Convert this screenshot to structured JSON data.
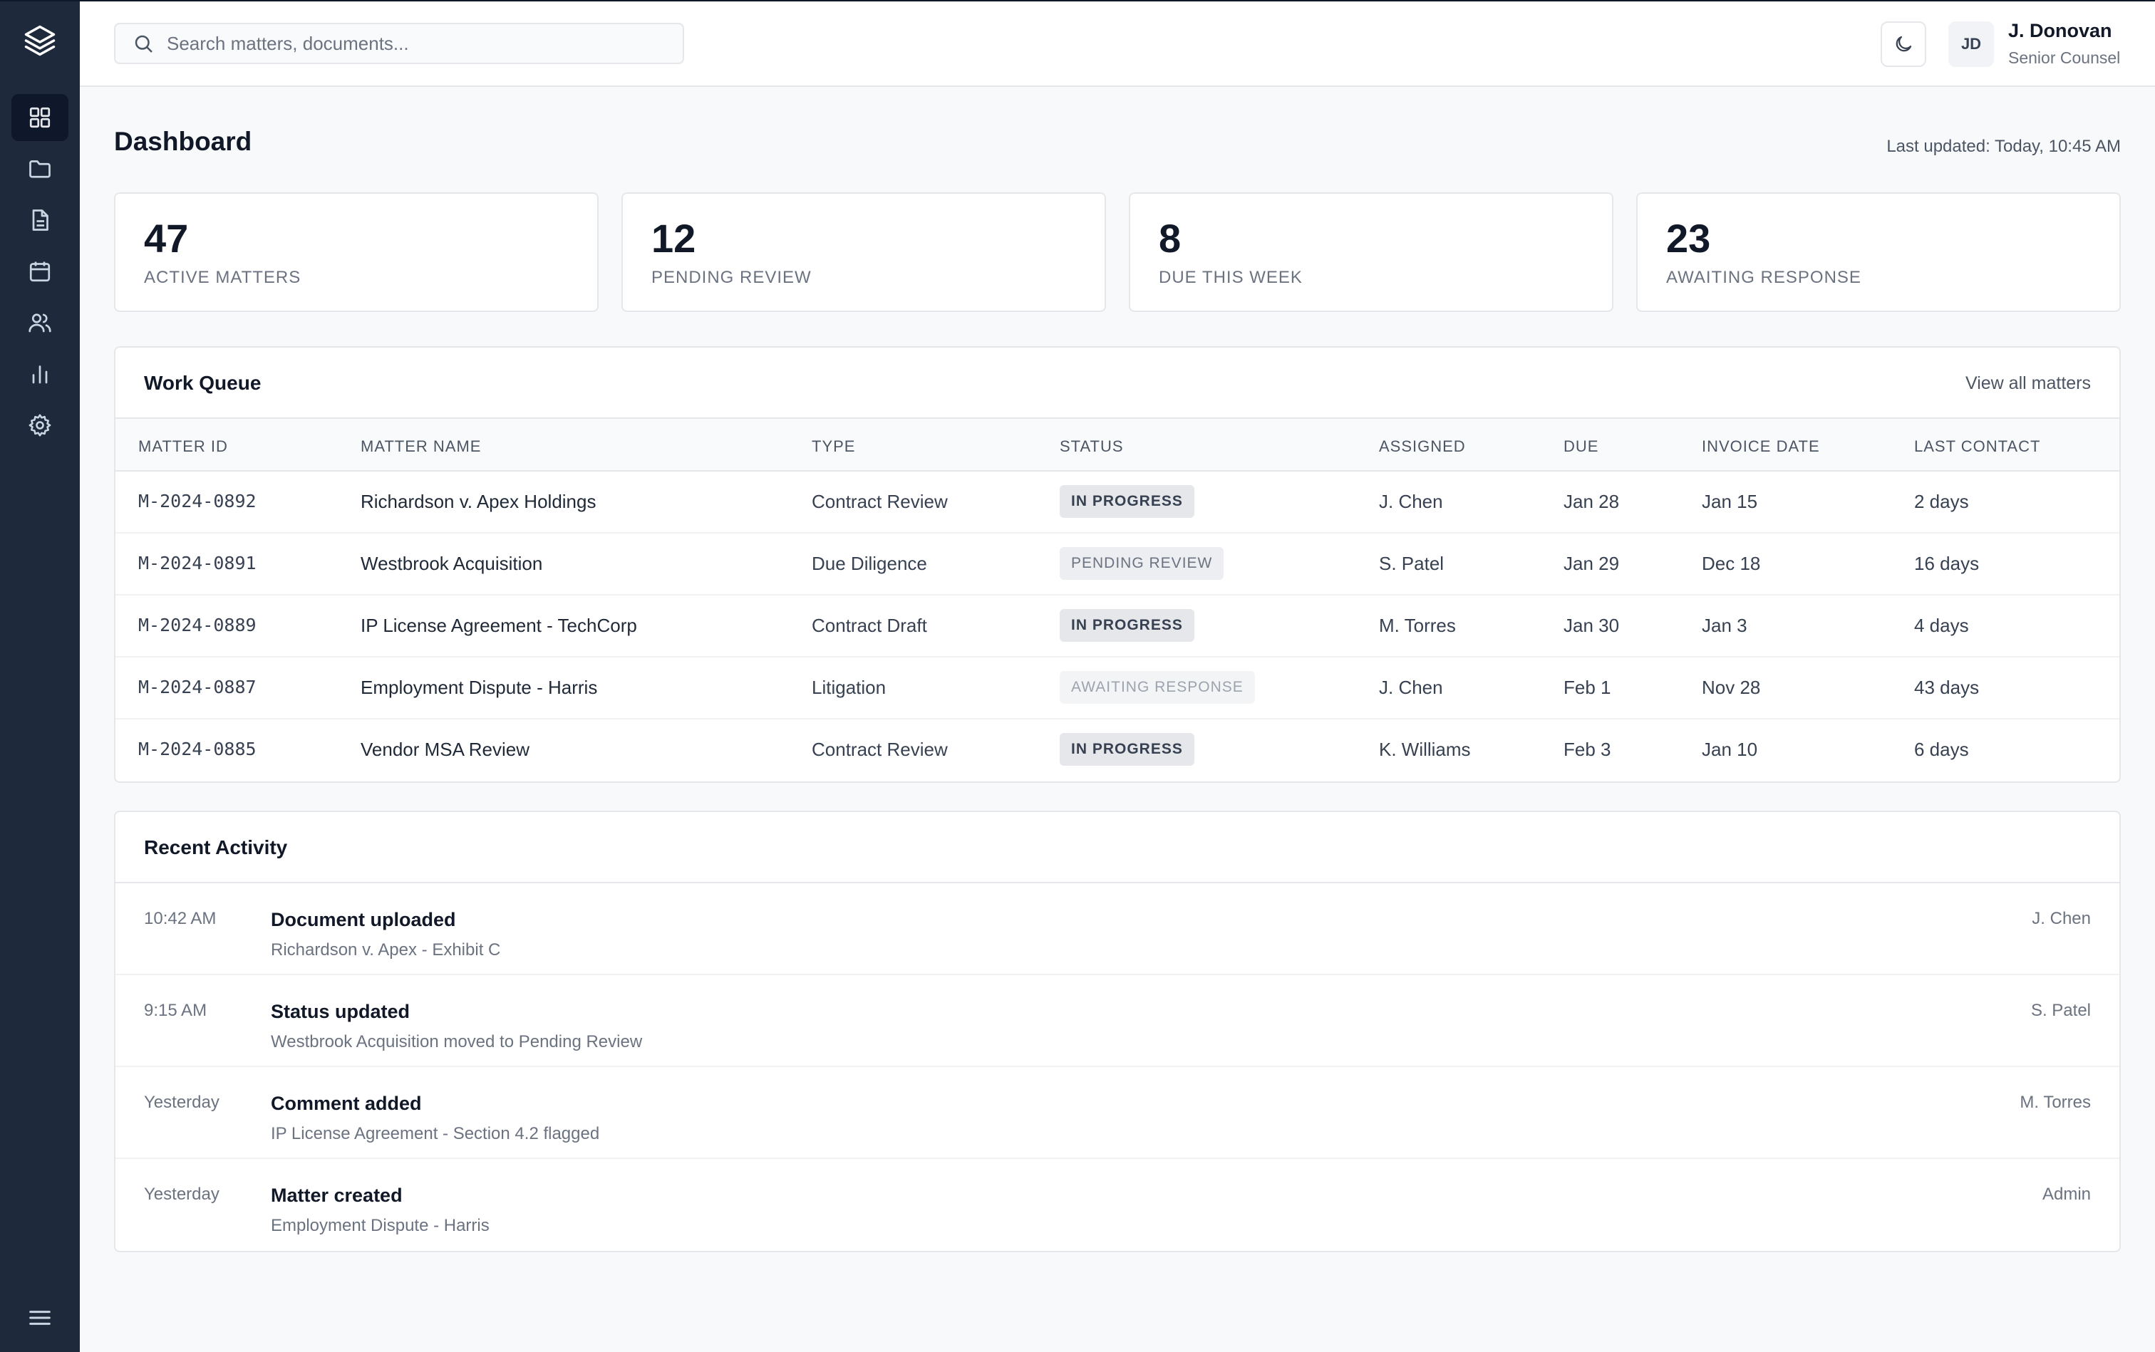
{
  "search": {
    "placeholder": "Search matters, documents..."
  },
  "user": {
    "initials": "JD",
    "name": "J. Donovan",
    "role": "Senior Counsel"
  },
  "page": {
    "title": "Dashboard",
    "last_updated": "Last updated: Today, 10:45 AM"
  },
  "sidebar": {
    "items": [
      {
        "icon": "dashboard-icon",
        "active": true
      },
      {
        "icon": "folder-icon",
        "active": false
      },
      {
        "icon": "document-icon",
        "active": false
      },
      {
        "icon": "calendar-icon",
        "active": false
      },
      {
        "icon": "users-icon",
        "active": false
      },
      {
        "icon": "bar-chart-icon",
        "active": false
      },
      {
        "icon": "gear-icon",
        "active": false
      }
    ]
  },
  "stats": [
    {
      "value": "47",
      "label": "ACTIVE MATTERS"
    },
    {
      "value": "12",
      "label": "PENDING REVIEW"
    },
    {
      "value": "8",
      "label": "DUE THIS WEEK"
    },
    {
      "value": "23",
      "label": "AWAITING RESPONSE"
    }
  ],
  "work_queue": {
    "title": "Work Queue",
    "link": "View all matters",
    "columns": [
      "MATTER ID",
      "MATTER NAME",
      "TYPE",
      "STATUS",
      "ASSIGNED",
      "DUE",
      "INVOICE DATE",
      "LAST CONTACT"
    ],
    "rows": [
      {
        "id": "M-2024-0892",
        "name": "Richardson v. Apex Holdings",
        "type": "Contract Review",
        "status": "IN PROGRESS",
        "assigned": "J. Chen",
        "due": "Jan 28",
        "invoice": "Jan 15",
        "contact": "2 days"
      },
      {
        "id": "M-2024-0891",
        "name": "Westbrook Acquisition",
        "type": "Due Diligence",
        "status": "PENDING REVIEW",
        "assigned": "S. Patel",
        "due": "Jan 29",
        "invoice": "Dec 18",
        "contact": "16 days"
      },
      {
        "id": "M-2024-0889",
        "name": "IP License Agreement - TechCorp",
        "type": "Contract Draft",
        "status": "IN PROGRESS",
        "assigned": "M. Torres",
        "due": "Jan 30",
        "invoice": "Jan 3",
        "contact": "4 days"
      },
      {
        "id": "M-2024-0887",
        "name": "Employment Dispute - Harris",
        "type": "Litigation",
        "status": "AWAITING RESPONSE",
        "assigned": "J. Chen",
        "due": "Feb 1",
        "invoice": "Nov 28",
        "contact": "43 days"
      },
      {
        "id": "M-2024-0885",
        "name": "Vendor MSA Review",
        "type": "Contract Review",
        "status": "IN PROGRESS",
        "assigned": "K. Williams",
        "due": "Feb 3",
        "invoice": "Jan 10",
        "contact": "6 days"
      }
    ]
  },
  "activity": {
    "title": "Recent Activity",
    "items": [
      {
        "time": "10:42 AM",
        "title": "Document uploaded",
        "detail": "Richardson v. Apex - Exhibit C",
        "user": "J. Chen"
      },
      {
        "time": "9:15 AM",
        "title": "Status updated",
        "detail": "Westbrook Acquisition moved to Pending Review",
        "user": "S. Patel"
      },
      {
        "time": "Yesterday",
        "title": "Comment added",
        "detail": "IP License Agreement - Section 4.2 flagged",
        "user": "M. Torres"
      },
      {
        "time": "Yesterday",
        "title": "Matter created",
        "detail": "Employment Dispute - Harris",
        "user": "Admin"
      }
    ]
  }
}
